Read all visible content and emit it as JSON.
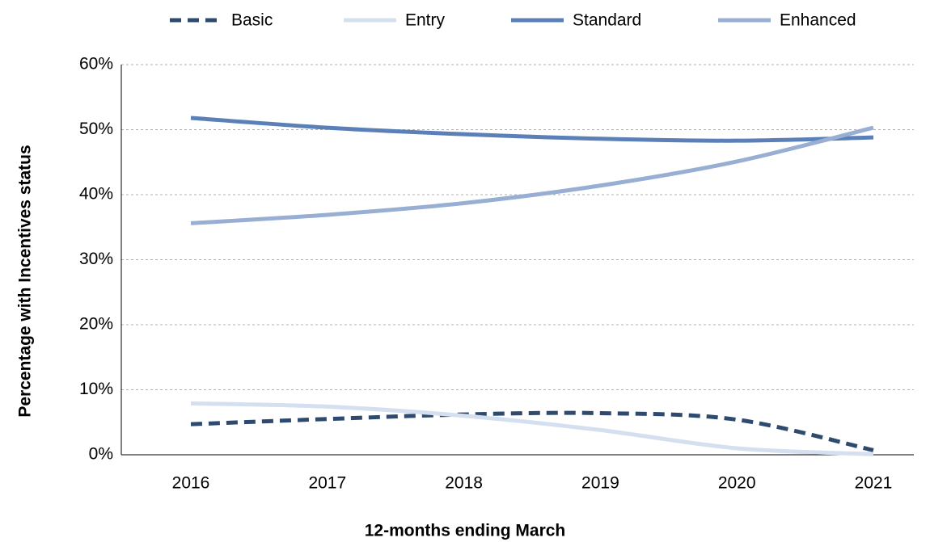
{
  "chart_data": {
    "type": "line",
    "x_label": "12-months ending March",
    "y_label": "Percentage  with Incentives status",
    "categories": [
      "2016",
      "2017",
      "2018",
      "2019",
      "2020",
      "2021"
    ],
    "series": [
      {
        "name": "Basic",
        "color": "#2e4a6e",
        "dashed": true,
        "values": [
          4.7,
          5.5,
          6.2,
          6.4,
          5.4,
          0.7
        ]
      },
      {
        "name": "Entry",
        "color": "#d4dff0",
        "dashed": false,
        "values": [
          7.9,
          7.4,
          6.0,
          3.8,
          1.0,
          0.1
        ]
      },
      {
        "name": "Standard",
        "color": "#5b80b8",
        "dashed": false,
        "values": [
          51.8,
          50.3,
          49.3,
          48.6,
          48.3,
          48.8
        ]
      },
      {
        "name": "Enhanced",
        "color": "#98afd3",
        "dashed": false,
        "values": [
          35.6,
          36.9,
          38.7,
          41.4,
          45.1,
          50.3
        ]
      }
    ],
    "ylim": [
      0,
      60
    ],
    "yticks": [
      {
        "value": 0,
        "label": "0%"
      },
      {
        "value": 10,
        "label": "10%"
      },
      {
        "value": 20,
        "label": "20%"
      },
      {
        "value": 30,
        "label": "30%"
      },
      {
        "value": 40,
        "label": "40%"
      },
      {
        "value": 50,
        "label": "50%"
      },
      {
        "value": 60,
        "label": "60%"
      }
    ],
    "grid": true,
    "legend": "top"
  }
}
